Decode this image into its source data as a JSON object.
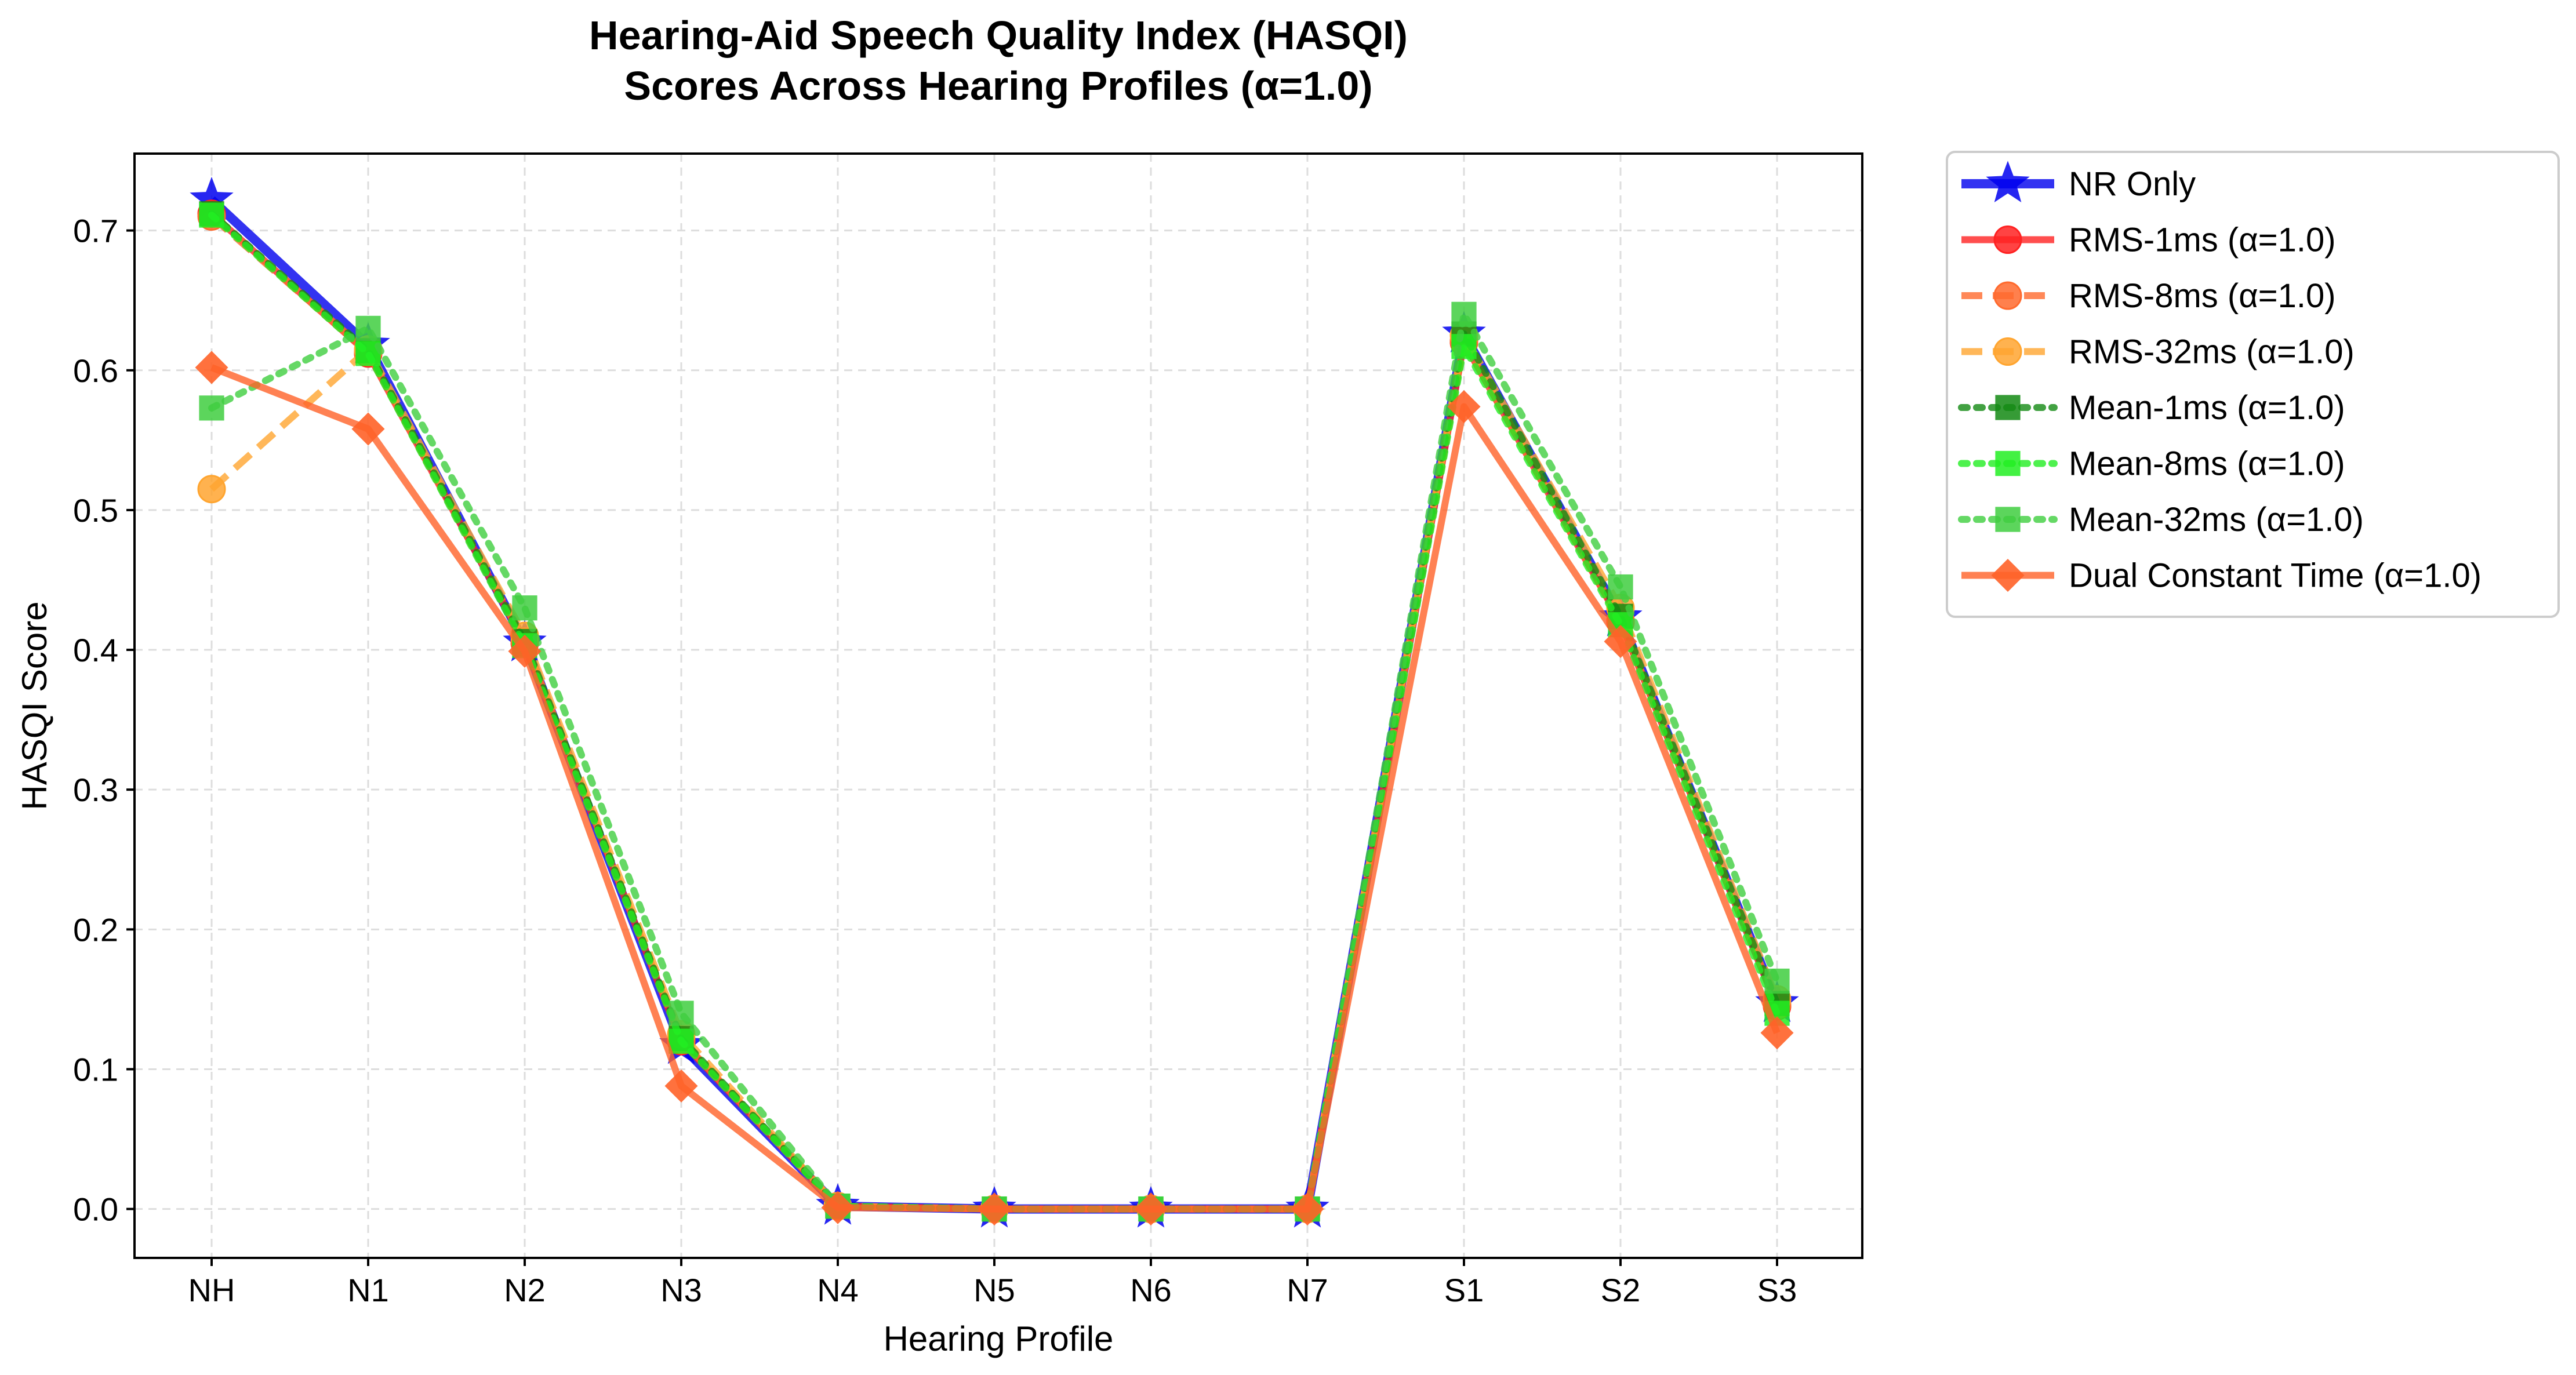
{
  "chart_data": {
    "type": "line",
    "title_lines": [
      "Hearing-Aid Speech Quality Index (HASQI)",
      "Scores Across Hearing Profiles (α=1.0)"
    ],
    "xlabel": "Hearing Profile",
    "ylabel": "HASQI Score",
    "categories": [
      "NH",
      "N1",
      "N2",
      "N3",
      "N4",
      "N5",
      "N6",
      "N7",
      "S1",
      "S2",
      "S3"
    ],
    "ylim": [
      -0.035,
      0.755
    ],
    "yticks": [
      "0.0",
      "0.1",
      "0.2",
      "0.3",
      "0.4",
      "0.5",
      "0.6",
      "0.7"
    ],
    "grid": true,
    "legend_position": "outside-right",
    "series": [
      {
        "name": "NR Only",
        "color": "#0000ee",
        "marker": "star",
        "linestyle": "solid",
        "linewidth": 16,
        "values": [
          0.722,
          0.618,
          0.405,
          0.117,
          0.002,
          0.0,
          0.0,
          0.0,
          0.626,
          0.423,
          0.147
        ]
      },
      {
        "name": "RMS-1ms (α=1.0)",
        "color": "#ff2222",
        "marker": "circle",
        "linestyle": "solid",
        "linewidth": 12,
        "values": [
          0.712,
          0.612,
          0.405,
          0.12,
          0.002,
          0.0,
          0.0,
          0.0,
          0.62,
          0.42,
          0.145
        ]
      },
      {
        "name": "RMS-8ms (α=1.0)",
        "color": "#ff6a2e",
        "marker": "circle",
        "linestyle": "dashed",
        "linewidth": 12,
        "values": [
          0.71,
          0.613,
          0.406,
          0.121,
          0.002,
          0.0,
          0.0,
          0.0,
          0.621,
          0.421,
          0.146
        ]
      },
      {
        "name": "RMS-32ms (α=1.0)",
        "color": "#ffa530",
        "marker": "circle",
        "linestyle": "dashed",
        "linewidth": 12,
        "values": [
          0.515,
          0.615,
          0.41,
          0.125,
          0.002,
          0.0,
          0.0,
          0.0,
          0.625,
          0.43,
          0.15
        ]
      },
      {
        "name": "Mean-1ms (α=1.0)",
        "color": "#138a13",
        "marker": "square",
        "linestyle": "dotted",
        "linewidth": 12,
        "values": [
          0.712,
          0.614,
          0.406,
          0.122,
          0.002,
          0.0,
          0.0,
          0.0,
          0.626,
          0.424,
          0.147
        ]
      },
      {
        "name": "Mean-8ms (α=1.0)",
        "color": "#22ee22",
        "marker": "square",
        "linestyle": "dotted",
        "linewidth": 12,
        "values": [
          0.711,
          0.612,
          0.403,
          0.12,
          0.002,
          0.0,
          0.0,
          0.0,
          0.617,
          0.418,
          0.14
        ]
      },
      {
        "name": "Mean-32ms (α=1.0)",
        "color": "#3fce3f",
        "marker": "square",
        "linestyle": "dotted",
        "linewidth": 12,
        "values": [
          0.573,
          0.63,
          0.43,
          0.14,
          0.002,
          0.0,
          0.0,
          0.0,
          0.64,
          0.445,
          0.163
        ]
      },
      {
        "name": "Dual Constant Time (α=1.0)",
        "color": "#ff6228",
        "marker": "diamond",
        "linestyle": "solid",
        "linewidth": 12,
        "values": [
          0.602,
          0.558,
          0.399,
          0.088,
          0.001,
          0.0,
          0.0,
          0.0,
          0.574,
          0.406,
          0.126
        ]
      }
    ]
  }
}
